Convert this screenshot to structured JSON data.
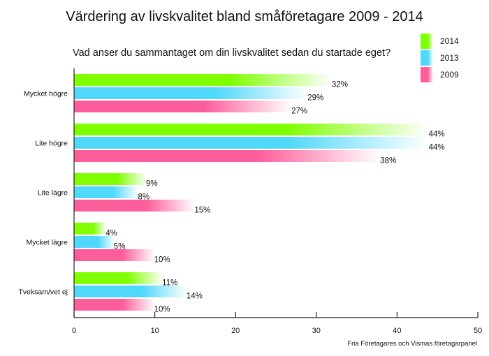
{
  "chart_data": {
    "type": "bar",
    "orientation": "horizontal",
    "title": "Värdering av livskvalitet bland småföretagare 2009 - 2014",
    "subtitle": "Vad anser du sammantaget om din livskvalitet sedan du startade eget?",
    "source": "Fria Företagares och Vismas företagarpanel",
    "categories": [
      "Mycket högre",
      "Lite högre",
      "Lite lägre",
      "Mycket lägre",
      "Tveksam/vet ej"
    ],
    "series": [
      {
        "name": "2014",
        "color": "#7fff00",
        "values": [
          32,
          44,
          9,
          4,
          11
        ]
      },
      {
        "name": "2013",
        "color": "#4fd8fb",
        "values": [
          29,
          44,
          8,
          5,
          14
        ]
      },
      {
        "name": "2009",
        "color": "#fc5e9c",
        "values": [
          27,
          38,
          15,
          10,
          10
        ]
      }
    ],
    "value_suffix": "%",
    "xlim": [
      0,
      50
    ],
    "xticks": [
      "0",
      "10",
      "20",
      "30",
      "40",
      "50"
    ],
    "grid": false,
    "legend": "top-right"
  }
}
